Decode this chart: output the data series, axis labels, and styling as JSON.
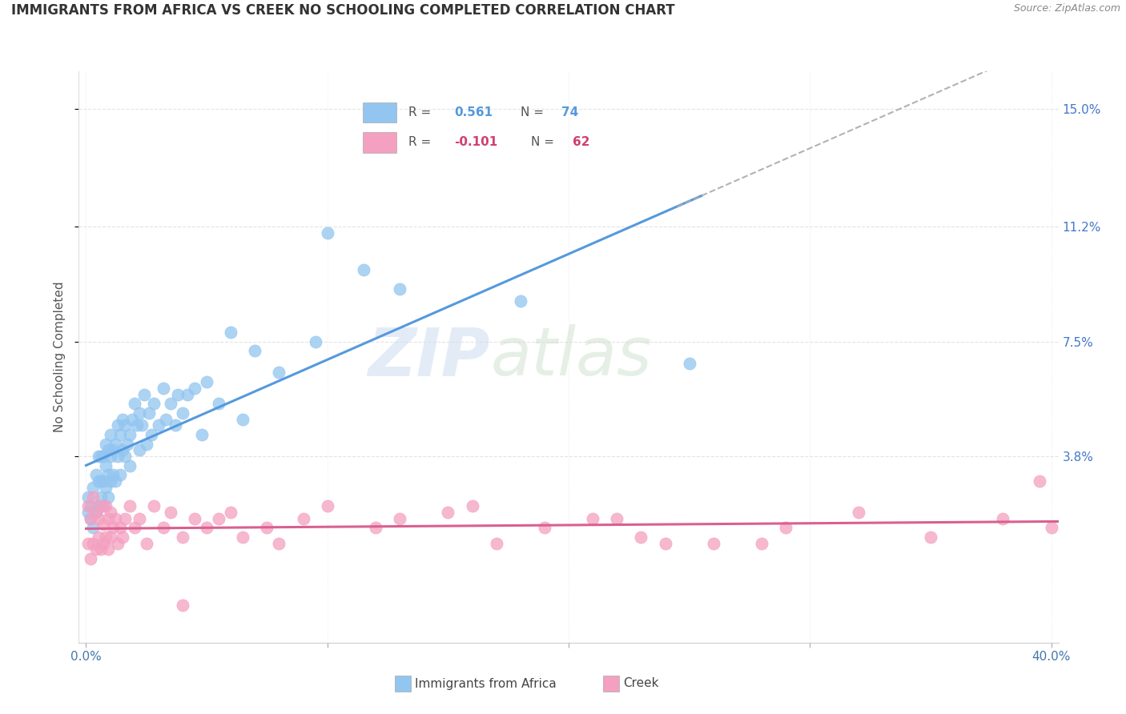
{
  "title": "IMMIGRANTS FROM AFRICA VS CREEK NO SCHOOLING COMPLETED CORRELATION CHART",
  "source_text": "Source: ZipAtlas.com",
  "ylabel": "No Schooling Completed",
  "blue_color": "#92c5f0",
  "pink_color": "#f4a0c0",
  "blue_line_color": "#5599dd",
  "pink_line_color": "#d96090",
  "watermark_zip": "ZIP",
  "watermark_atlas": "atlas",
  "background_color": "#ffffff",
  "grid_color": "#dddddd",
  "ytick_vals": [
    0.15,
    0.112,
    0.075,
    0.038
  ],
  "ytick_labels": [
    "15.0%",
    "11.2%",
    "7.5%",
    "3.8%"
  ],
  "xlim": [
    -0.003,
    0.403
  ],
  "ylim": [
    -0.022,
    0.162
  ],
  "legend_blue_r": "R =  0.561",
  "legend_blue_n": "N = 74",
  "legend_pink_r": "R = -0.101",
  "legend_pink_n": "N = 62",
  "r_color": "#5599dd",
  "n_color": "#d04070",
  "blue_x": [
    0.001,
    0.001,
    0.002,
    0.002,
    0.003,
    0.003,
    0.004,
    0.004,
    0.005,
    0.005,
    0.005,
    0.006,
    0.006,
    0.006,
    0.007,
    0.007,
    0.007,
    0.008,
    0.008,
    0.008,
    0.009,
    0.009,
    0.009,
    0.01,
    0.01,
    0.01,
    0.011,
    0.011,
    0.012,
    0.012,
    0.013,
    0.013,
    0.014,
    0.014,
    0.015,
    0.015,
    0.016,
    0.016,
    0.017,
    0.018,
    0.018,
    0.019,
    0.02,
    0.021,
    0.022,
    0.022,
    0.023,
    0.024,
    0.025,
    0.026,
    0.027,
    0.028,
    0.03,
    0.032,
    0.033,
    0.035,
    0.037,
    0.038,
    0.04,
    0.042,
    0.045,
    0.048,
    0.05,
    0.055,
    0.06,
    0.065,
    0.07,
    0.08,
    0.095,
    0.1,
    0.115,
    0.13,
    0.18,
    0.25
  ],
  "blue_y": [
    0.02,
    0.025,
    0.018,
    0.022,
    0.015,
    0.028,
    0.02,
    0.032,
    0.022,
    0.03,
    0.038,
    0.025,
    0.03,
    0.038,
    0.022,
    0.03,
    0.038,
    0.028,
    0.035,
    0.042,
    0.025,
    0.032,
    0.04,
    0.03,
    0.038,
    0.045,
    0.032,
    0.04,
    0.03,
    0.042,
    0.038,
    0.048,
    0.032,
    0.045,
    0.04,
    0.05,
    0.038,
    0.048,
    0.042,
    0.035,
    0.045,
    0.05,
    0.055,
    0.048,
    0.052,
    0.04,
    0.048,
    0.058,
    0.042,
    0.052,
    0.045,
    0.055,
    0.048,
    0.06,
    0.05,
    0.055,
    0.048,
    0.058,
    0.052,
    0.058,
    0.06,
    0.045,
    0.062,
    0.055,
    0.078,
    0.05,
    0.072,
    0.065,
    0.075,
    0.11,
    0.098,
    0.092,
    0.088,
    0.068
  ],
  "pink_x": [
    0.001,
    0.001,
    0.002,
    0.002,
    0.003,
    0.003,
    0.004,
    0.004,
    0.005,
    0.005,
    0.006,
    0.006,
    0.007,
    0.007,
    0.008,
    0.008,
    0.009,
    0.009,
    0.01,
    0.01,
    0.011,
    0.012,
    0.013,
    0.014,
    0.015,
    0.016,
    0.018,
    0.02,
    0.022,
    0.025,
    0.028,
    0.032,
    0.035,
    0.04,
    0.045,
    0.05,
    0.06,
    0.065,
    0.075,
    0.08,
    0.09,
    0.1,
    0.12,
    0.13,
    0.15,
    0.17,
    0.19,
    0.21,
    0.23,
    0.26,
    0.29,
    0.32,
    0.35,
    0.38,
    0.395,
    0.4,
    0.22,
    0.28,
    0.04,
    0.24,
    0.16,
    0.055
  ],
  "pink_y": [
    0.01,
    0.022,
    0.005,
    0.018,
    0.01,
    0.025,
    0.008,
    0.02,
    0.012,
    0.018,
    0.008,
    0.022,
    0.01,
    0.016,
    0.012,
    0.022,
    0.008,
    0.018,
    0.012,
    0.02,
    0.015,
    0.018,
    0.01,
    0.015,
    0.012,
    0.018,
    0.022,
    0.015,
    0.018,
    0.01,
    0.022,
    0.015,
    0.02,
    0.012,
    0.018,
    0.015,
    0.02,
    0.012,
    0.015,
    0.01,
    0.018,
    0.022,
    0.015,
    0.018,
    0.02,
    0.01,
    0.015,
    0.018,
    0.012,
    0.01,
    0.015,
    0.02,
    0.012,
    0.018,
    0.03,
    0.015,
    0.018,
    0.01,
    -0.01,
    0.01,
    0.022,
    0.018
  ]
}
